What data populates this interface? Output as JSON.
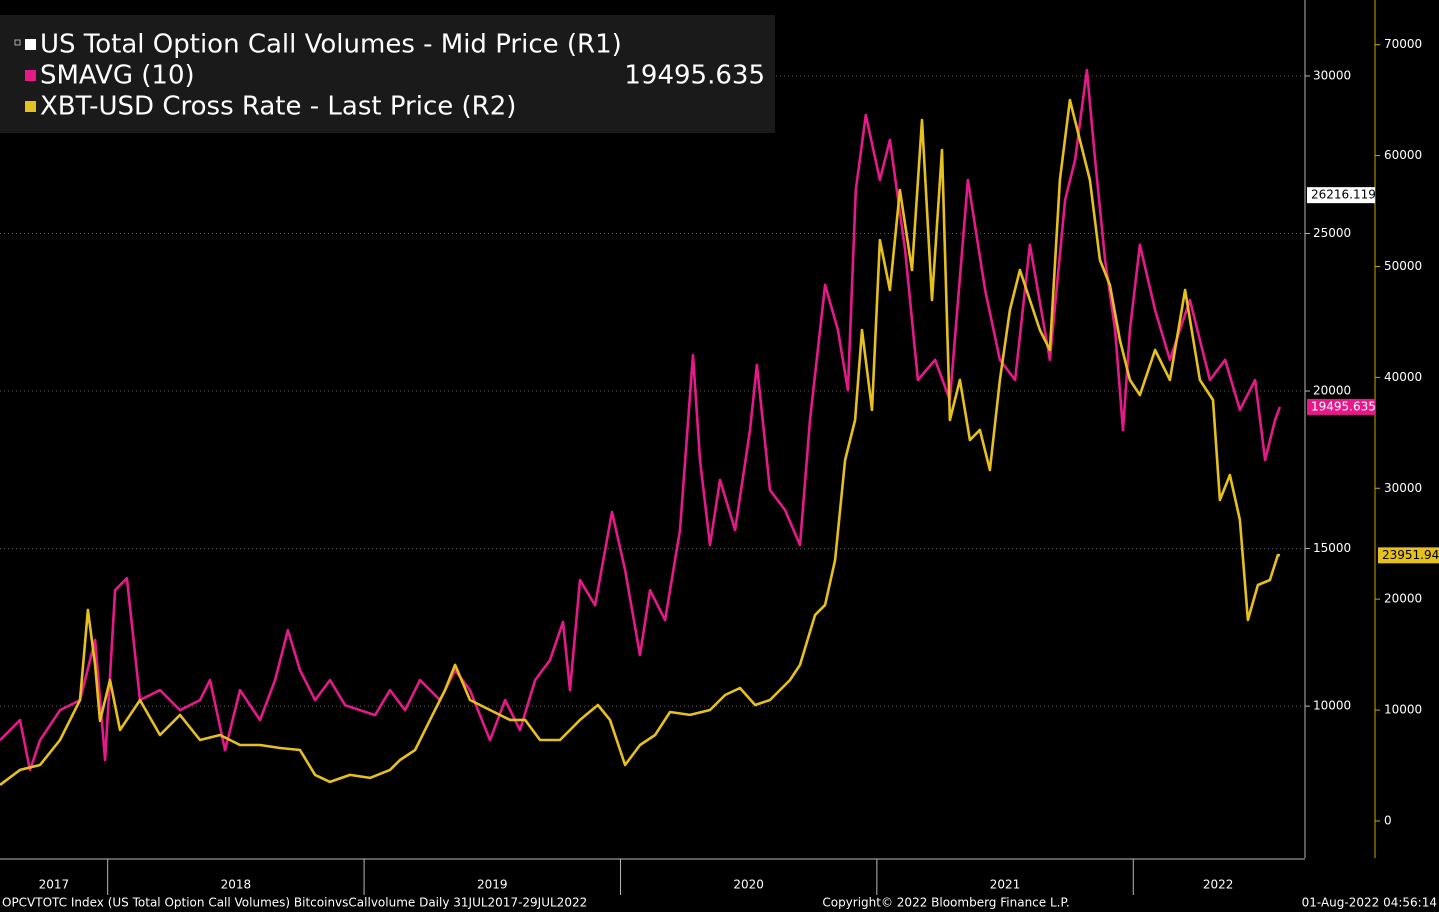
{
  "chart_data": {
    "type": "line",
    "legend": "upper left",
    "grid": true,
    "primary": {
      "name": "US Total Option Call Volumes - Mid Price (R1)",
      "color": "#ffffff",
      "axis": "y",
      "last_value": 26216.119
    },
    "series": [
      {
        "name": "SMAVG (10)",
        "color": "#e6198a",
        "axis": "y",
        "last_value": 19495.635,
        "x": [
          2017.58,
          2017.658,
          2017.697,
          2017.736,
          2017.814,
          2017.892,
          2017.951,
          2017.99,
          2018.029,
          2018.075,
          2018.126,
          2018.204,
          2018.282,
          2018.36,
          2018.399,
          2018.458,
          2018.516,
          2018.594,
          2018.653,
          2018.703,
          2018.75,
          2018.809,
          2018.867,
          2018.926,
          2018.984,
          2019.043,
          2019.101,
          2019.16,
          2019.218,
          2019.296,
          2019.355,
          2019.413,
          2019.491,
          2019.55,
          2019.608,
          2019.667,
          2019.725,
          2019.776,
          2019.803,
          2019.842,
          2019.901,
          2019.967,
          2020.018,
          2020.076,
          2020.115,
          2020.174,
          2020.232,
          2020.283,
          2020.31,
          2020.349,
          2020.388,
          2020.447,
          2020.505,
          2020.532,
          2020.583,
          2020.642,
          2020.7,
          2020.739,
          2020.798,
          2020.848,
          2020.887,
          2020.918,
          2020.957,
          2021.012,
          2021.051,
          2021.11,
          2021.16,
          2021.227,
          2021.285,
          2021.355,
          2021.422,
          2021.48,
          2021.539,
          2021.597,
          2021.675,
          2021.734,
          2021.773,
          2021.819,
          2021.851,
          2021.89,
          2021.929,
          2021.96,
          2021.987,
          2022.026,
          2022.085,
          2022.143,
          2022.221,
          2022.299,
          2022.358,
          2022.416,
          2022.475,
          2022.514,
          2022.553,
          2022.572
        ],
        "values": [
          8920,
          9555,
          7970,
          8920,
          9870,
          10190,
          12100,
          8290,
          13680,
          14060,
          10190,
          10510,
          9870,
          10190,
          10825,
          8600,
          10510,
          9555,
          10825,
          12410,
          11140,
          10190,
          10825,
          10030,
          9870,
          9715,
          10510,
          9870,
          10825,
          10190,
          11140,
          10510,
          8920,
          10190,
          9240,
          10825,
          11460,
          12670,
          10510,
          14000,
          13200,
          16160,
          14320,
          11620,
          13680,
          12730,
          15590,
          21140,
          17810,
          15110,
          17180,
          15590,
          18760,
          20830,
          16860,
          16220,
          15110,
          19080,
          23370,
          21940,
          20030,
          26380,
          28760,
          26700,
          27970,
          24480,
          20350,
          20990,
          19720,
          26700,
          23210,
          20990,
          20350,
          24640,
          20990,
          26060,
          27340,
          30190,
          27340,
          24160,
          21940,
          18760,
          21940,
          24640,
          22570,
          20990,
          22890,
          20350,
          20990,
          19400,
          20350,
          17810,
          19080,
          19495.635
        ]
      },
      {
        "name": "XBT-USD Cross Rate - Last Price (R2)",
        "color": "#e6c01f",
        "axis": "y2",
        "last_value": 23951.94,
        "x": [
          2017.58,
          2017.658,
          2017.736,
          2017.814,
          2017.892,
          2017.923,
          2017.951,
          2017.97,
          2018.009,
          2018.048,
          2018.126,
          2018.204,
          2018.282,
          2018.36,
          2018.438,
          2018.516,
          2018.594,
          2018.672,
          2018.75,
          2018.809,
          2018.867,
          2018.945,
          2019.023,
          2019.101,
          2019.14,
          2019.199,
          2019.257,
          2019.316,
          2019.355,
          2019.413,
          2019.491,
          2019.569,
          2019.628,
          2019.686,
          2019.764,
          2019.842,
          2019.912,
          2019.959,
          2020.018,
          2020.076,
          2020.135,
          2020.193,
          2020.271,
          2020.349,
          2020.408,
          2020.466,
          2020.525,
          2020.583,
          2020.661,
          2020.7,
          2020.759,
          2020.798,
          2020.837,
          2020.876,
          2020.915,
          2020.942,
          2020.981,
          2021.012,
          2021.051,
          2021.09,
          2021.137,
          2021.176,
          2021.215,
          2021.254,
          2021.285,
          2021.324,
          2021.363,
          2021.402,
          2021.441,
          2021.48,
          2021.519,
          2021.558,
          2021.597,
          2021.636,
          2021.675,
          2021.714,
          2021.753,
          2021.792,
          2021.831,
          2021.87,
          2021.909,
          2021.948,
          2021.987,
          2022.026,
          2022.085,
          2022.143,
          2022.202,
          2022.26,
          2022.311,
          2022.338,
          2022.377,
          2022.416,
          2022.447,
          2022.486,
          2022.533,
          2022.564,
          2022.572
        ],
        "values": [
          3250,
          4600,
          5050,
          7300,
          10900,
          19030,
          14070,
          9020,
          12710,
          8200,
          10900,
          7750,
          9560,
          7300,
          7750,
          6850,
          6850,
          6580,
          6400,
          4150,
          3520,
          4150,
          3880,
          4600,
          5500,
          6400,
          9110,
          11810,
          14070,
          10910,
          10010,
          9110,
          9110,
          7300,
          7300,
          9110,
          10460,
          9110,
          5050,
          6850,
          7750,
          9830,
          9560,
          10010,
          11360,
          11990,
          10460,
          10910,
          12710,
          14070,
          18580,
          19480,
          23530,
          32550,
          36160,
          44270,
          37060,
          52390,
          47880,
          56900,
          49680,
          63210,
          46980,
          60500,
          36160,
          39770,
          34350,
          35260,
          31650,
          39770,
          46080,
          49680,
          46980,
          44270,
          42470,
          57800,
          65010,
          61410,
          57800,
          50590,
          48330,
          43370,
          39770,
          38410,
          42470,
          39770,
          47880,
          39770,
          37960,
          28940,
          31200,
          27140,
          18120,
          21280,
          21730,
          23980,
          23951.94
        ]
      }
    ],
    "xlim": [
      2017.58,
      2022.662
    ],
    "xticks": [
      2018,
      2019,
      2020,
      2021,
      2022
    ],
    "year_labels": [
      "2017",
      "2018",
      "2019",
      "2020",
      "2021",
      "2022"
    ],
    "ylim": [
      5180,
      32410
    ],
    "yticks": [
      10000,
      15000,
      20000,
      25000,
      30000
    ],
    "y2lim": [
      -3340,
      74030
    ],
    "y2ticks": [
      0,
      10000,
      20000,
      30000,
      40000,
      50000,
      60000,
      70000
    ],
    "footer_left": "OPCVTOTC Index (US Total Option Call Volumes) BitcoinvsCallvolume  Daily 31JUL2017-29JUL2022",
    "footer_center": "Copyright© 2022 Bloomberg Finance L.P.",
    "footer_right": "01-Aug-2022 04:56:14"
  }
}
